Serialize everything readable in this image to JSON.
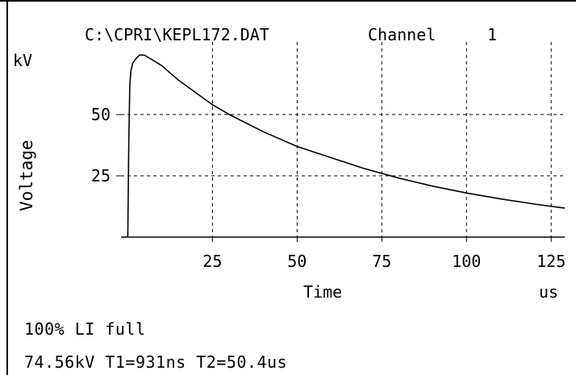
{
  "chart_data": {
    "type": "line",
    "title": "C:\\CPRI\\KEPL172.DAT",
    "channel_label": "Channel",
    "channel_number": "1",
    "xlabel": "Time",
    "xunit": "us",
    "ylabel": "Voltage",
    "yunit": "kV",
    "xlim": [
      -2,
      129
    ],
    "ylim": [
      0,
      77
    ],
    "xticks": [
      25,
      50,
      75,
      100,
      125
    ],
    "yticks": [
      25,
      50
    ],
    "grid": true,
    "series": [
      {
        "x": [
          0,
          0.3,
          0.6,
          0.93,
          1.5,
          2.5,
          3.5,
          5,
          10,
          15,
          20,
          25,
          30,
          40,
          50,
          60,
          70,
          75,
          80,
          90,
          100,
          110,
          120,
          129
        ],
        "y": [
          0,
          40,
          62,
          68,
          71,
          73,
          74.3,
          74.2,
          70,
          64,
          59,
          54,
          50,
          43,
          37,
          32.4,
          27.9,
          26,
          24.1,
          20.8,
          18,
          15.6,
          13.5,
          11.8
        ]
      }
    ]
  },
  "captions": {
    "line1": "100% LI full",
    "line2": "74.56kV T1=931ns T2=50.4us"
  },
  "colors": {
    "background": "#ffffff",
    "ink": "#000000"
  }
}
